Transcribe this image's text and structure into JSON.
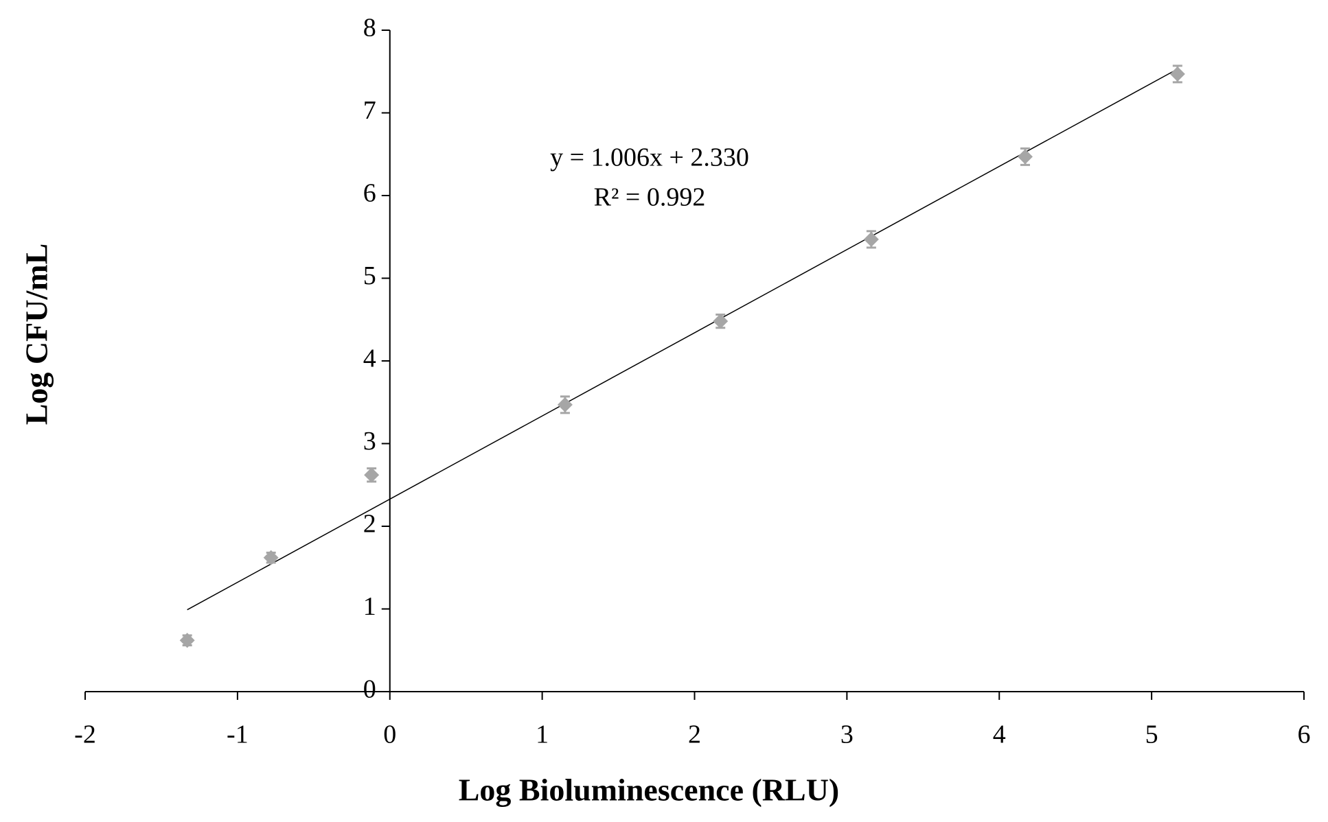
{
  "chart_data": {
    "type": "scatter",
    "x_label": "Log Bioluminescence (RLU)",
    "y_label": "Log CFU/mL",
    "x": [
      -1.33,
      -0.78,
      -0.12,
      1.15,
      2.17,
      3.16,
      4.17,
      5.17
    ],
    "values": [
      0.62,
      1.62,
      2.62,
      3.47,
      4.48,
      5.47,
      6.47,
      7.47
    ],
    "errors": [
      0.06,
      0.06,
      0.08,
      0.1,
      0.08,
      0.1,
      0.1,
      0.1
    ],
    "color": "#a6a6a6",
    "trendline": {
      "x": [
        -1.33,
        5.17
      ],
      "values": [
        0.99,
        7.53
      ],
      "color": "#000000",
      "equation": "y = 1.006x + 2.330",
      "r_squared": "R² = 0.992"
    },
    "xlim": [
      -2,
      6
    ],
    "xticks": [
      -2,
      -1,
      0,
      1,
      2,
      3,
      4,
      5,
      6
    ],
    "ylim": [
      0,
      8
    ],
    "yticks": [
      0,
      1,
      2,
      3,
      4,
      5,
      6,
      7,
      8
    ]
  }
}
